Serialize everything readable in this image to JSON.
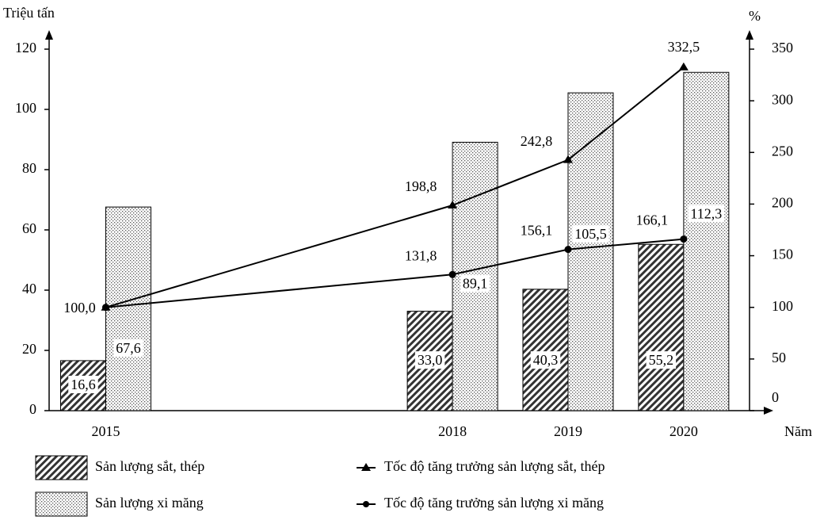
{
  "chart_data": {
    "type": "combo",
    "y_label": "Triệu tấn",
    "y2_label": "%",
    "x_label": "Năm",
    "x": [
      2015,
      2018,
      2019,
      2020
    ],
    "xlim": [
      2014.51,
      2020.57
    ],
    "ylim": [
      0,
      120
    ],
    "yticks": [
      0,
      20,
      40,
      60,
      80,
      100,
      120
    ],
    "y2lim": [
      0,
      350
    ],
    "y2ticks": [
      0,
      50,
      100,
      150,
      200,
      250,
      300,
      350
    ],
    "series": [
      {
        "name": "Sản lượng sắt, thép",
        "type": "bar",
        "pattern": "hatch",
        "color": "#333333",
        "values": [
          16.6,
          33.0,
          40.3,
          55.2
        ],
        "value_labels": [
          "16,6",
          "33,0",
          "40,3",
          "55,2"
        ]
      },
      {
        "name": "Sản lượng xi măng",
        "type": "bar",
        "pattern": "dots",
        "color": "#555555",
        "values": [
          67.6,
          89.1,
          105.5,
          112.3
        ],
        "value_labels": [
          "67,6",
          "89,1",
          "105,5",
          "112,3"
        ]
      },
      {
        "name": "Tốc độ tăng trưởng sản lượng sắt, thép",
        "type": "line",
        "marker": "triangle",
        "axis": "y2",
        "color": "#000000",
        "values": [
          100.0,
          198.8,
          242.8,
          332.5
        ],
        "value_labels": [
          null,
          "198,8",
          "242,8",
          "332,5"
        ]
      },
      {
        "name": "Tốc độ tăng trưởng sản lượng xi măng",
        "type": "line",
        "marker": "circle",
        "axis": "y2",
        "color": "#000000",
        "values": [
          100.0,
          131.8,
          156.1,
          166.1
        ],
        "value_labels": [
          "100,0",
          "131,8",
          "156,1",
          "166,1"
        ]
      }
    ]
  }
}
